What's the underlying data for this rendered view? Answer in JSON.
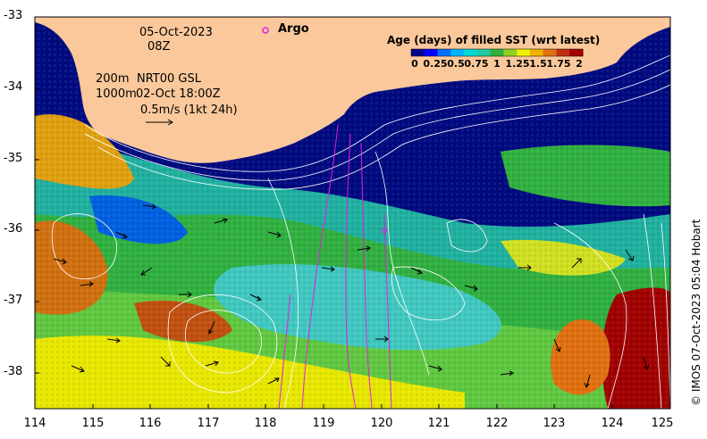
{
  "date_line1": "05-Oct-2023",
  "date_line2": "08Z",
  "contour_info": {
    "depth1": "200m",
    "depth2": "1000m",
    "product": "NRT00 GSL",
    "timestamp": "02-Oct 18:00Z",
    "scale_label": "0.5m/s (1kt 24h)"
  },
  "argo_label": "Argo",
  "legend": {
    "title": "Age (days) of filled SST (wrt latest)",
    "ticks": [
      "0",
      "0.25",
      "0.5",
      "0.75",
      "1",
      "1.25",
      "1.5",
      "1.75",
      "2"
    ],
    "colors": [
      "#00008b",
      "#0000ff",
      "#0070ff",
      "#00b4ff",
      "#00d8d8",
      "#20c8a0",
      "#30b040",
      "#90d020",
      "#f0f000",
      "#f0b000",
      "#e07010",
      "#c03010",
      "#a00000"
    ]
  },
  "axes": {
    "y_ticks": [
      "-33",
      "-34",
      "-35",
      "-36",
      "-37",
      "-38"
    ],
    "x_ticks": [
      "114",
      "115",
      "116",
      "117",
      "118",
      "119",
      "120",
      "121",
      "122",
      "123",
      "124",
      "125"
    ],
    "lat_range": [
      -38.5,
      -33
    ],
    "lon_range": [
      114,
      125
    ]
  },
  "credit": "© IMOS 07-Oct-2023 05:04 Hobart",
  "colors": {
    "land": "#fbc89b",
    "deep_ocean": "#000a80",
    "argo": "#e020e0"
  }
}
